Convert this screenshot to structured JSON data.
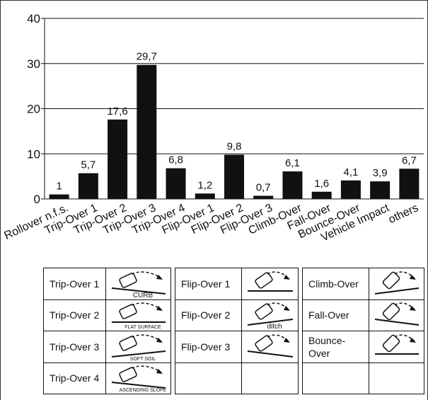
{
  "chart_data": {
    "type": "bar",
    "categories": [
      "Rollover n.f.s.",
      "Trip-Over 1",
      "Trip-Over 2",
      "Trip-Over 3",
      "Trip-Over 4",
      "Flip-Over 1",
      "Flip-Over 2",
      "Flip-Over 3",
      "Climb-Over",
      "Fall-Over",
      "Bounce-Over",
      "Vehicle Impact",
      "others"
    ],
    "values": [
      1,
      5.7,
      17.6,
      29.7,
      6.8,
      1.2,
      9.8,
      0.7,
      6.1,
      1.6,
      4.1,
      3.9,
      6.7
    ],
    "value_labels": [
      "1",
      "5,7",
      "17,6",
      "29,7",
      "6,8",
      "1,2",
      "9,8",
      "0,7",
      "6,1",
      "1,6",
      "4,1",
      "3,9",
      "6,7"
    ],
    "color": "#111111",
    "ylim": [
      0,
      40
    ],
    "yticks": [
      0,
      10,
      20,
      30,
      40
    ],
    "grid": true
  },
  "legend_tables": [
    {
      "rows": [
        {
          "label": "Trip-Over 1",
          "caption": "CURB"
        },
        {
          "label": "Trip-Over 2",
          "caption": "FLAT SURFACE"
        },
        {
          "label": "Trip-Over 3",
          "caption": "SOFT SOIL"
        },
        {
          "label": "Trip-Over 4",
          "caption": "ASCENDING SLOPE"
        }
      ]
    },
    {
      "rows": [
        {
          "label": "Flip-Over 1"
        },
        {
          "label": "Flip-Over 2",
          "caption": "ditch"
        },
        {
          "label": "Flip-Over 3"
        }
      ]
    },
    {
      "rows": [
        {
          "label": "Climb-Over"
        },
        {
          "label": "Fall-Over"
        },
        {
          "label": "Bounce-\nOver"
        }
      ]
    }
  ]
}
